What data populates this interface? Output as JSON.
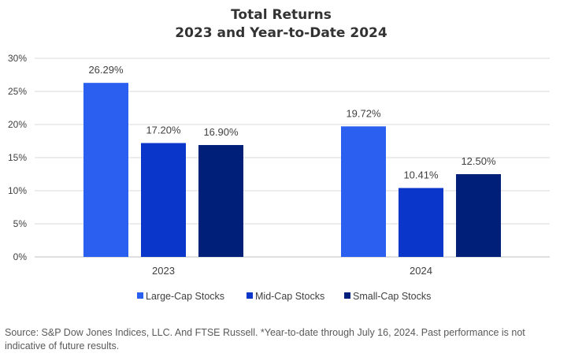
{
  "chart_data": {
    "type": "bar",
    "title_line1": "Total Returns",
    "title_line2": "2023 and Year-to-Date 2024",
    "categories": [
      "2023",
      "2024"
    ],
    "series": [
      {
        "name": "Large-Cap Stocks",
        "values": [
          26.29,
          19.72
        ],
        "labels": [
          "26.29%",
          "19.72%"
        ],
        "color": "#2a5ff0"
      },
      {
        "name": "Mid-Cap Stocks",
        "values": [
          17.2,
          10.41
        ],
        "labels": [
          "17.20%",
          "10.41%"
        ],
        "color": "#0a37c9"
      },
      {
        "name": "Small-Cap Stocks",
        "values": [
          16.9,
          12.5
        ],
        "labels": [
          "16.90%",
          "12.50%"
        ],
        "color": "#001f78"
      }
    ],
    "y_ticks": [
      "0%",
      "5%",
      "10%",
      "15%",
      "20%",
      "25%",
      "30%"
    ],
    "ylim": [
      0,
      30
    ],
    "grid": true,
    "legend_position": "bottom"
  },
  "footer": {
    "source": "Source: S&P Dow Jones Indices, LLC. And FTSE Russell. *Year-to-date through July 16, 2024. Past performance is not indicative of future results."
  }
}
